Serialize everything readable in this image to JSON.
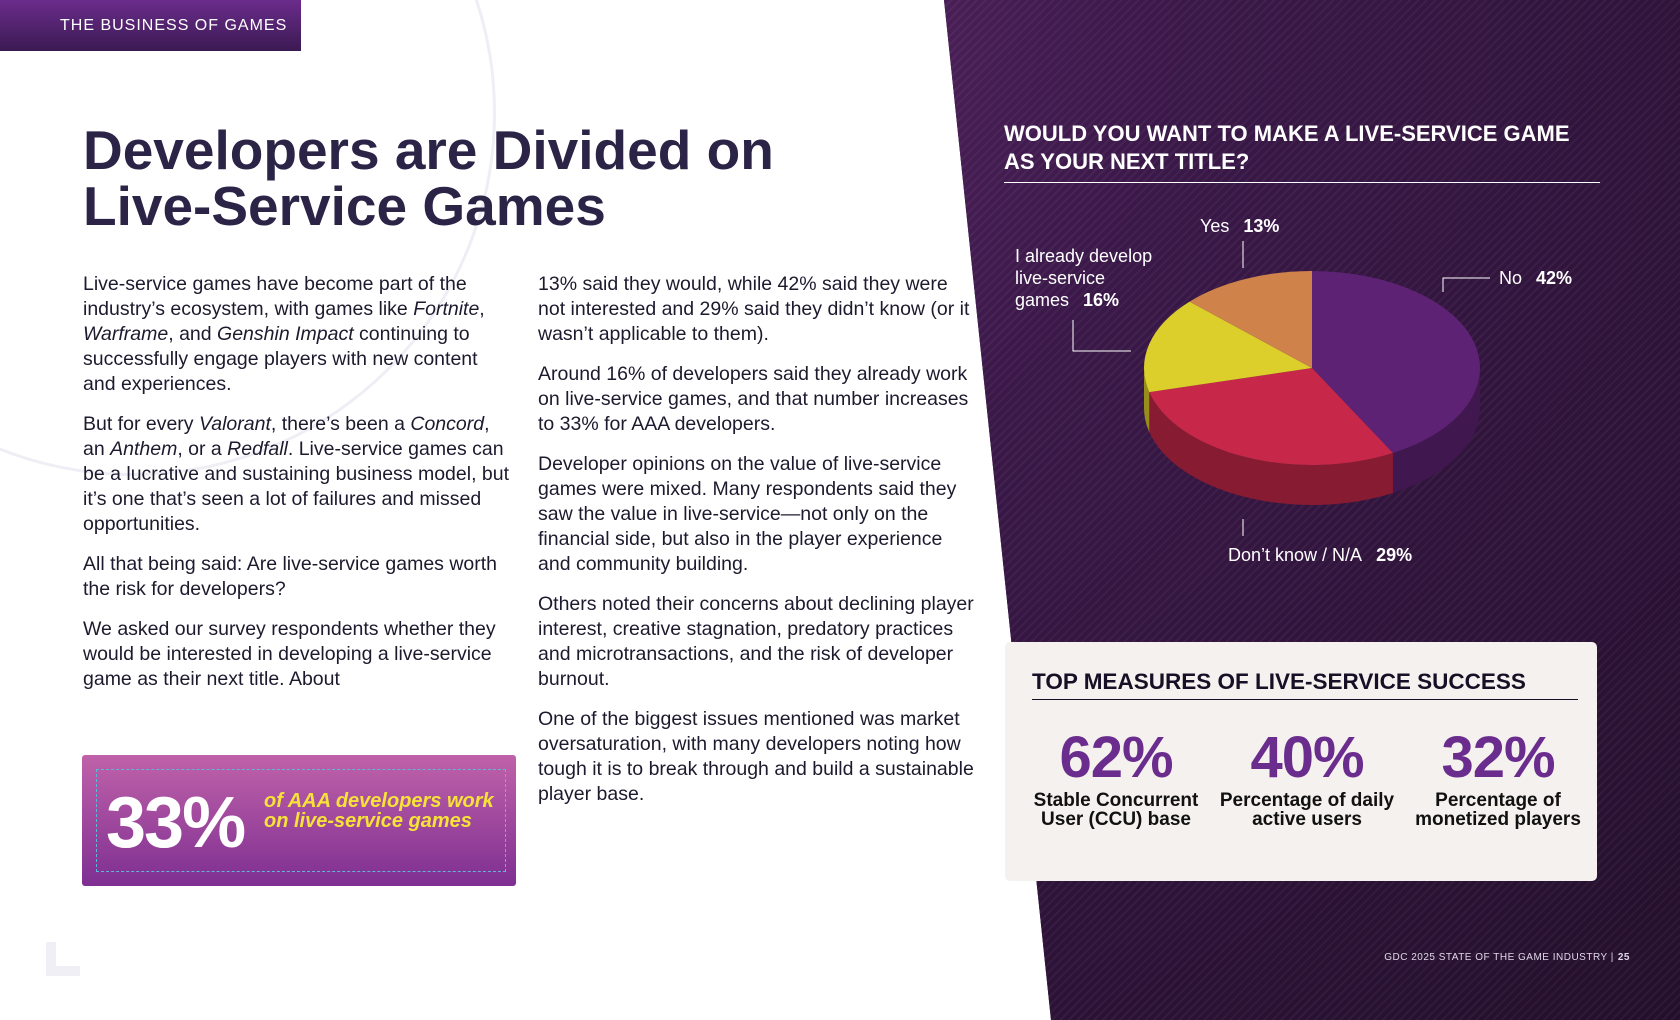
{
  "header": {
    "tag": "THE BUSINESS OF GAMES"
  },
  "title": {
    "line1": "Developers are Divided on",
    "line2": "Live-Service Games"
  },
  "col1": {
    "p1_a": "Live-service games have become part of the industry’s ecosystem, with games like ",
    "p1_g1": "Fortnite",
    "p1_s1": ", ",
    "p1_g2": "Warframe",
    "p1_s2": ", and ",
    "p1_g3": "Genshin Impact",
    "p1_b": " continuing to successfully engage players with new content and experiences.",
    "p2_a": "But for every ",
    "p2_g1": "Valorant",
    "p2_s1": ", there’s been a ",
    "p2_g2": "Concord",
    "p2_s2": ", an ",
    "p2_g3": "Anthem",
    "p2_s3": ", or a ",
    "p2_g4": "Redfall",
    "p2_b": ". Live-service games can be a lucrative and sustaining business model, but it’s one that’s seen a lot of failures and missed opportunities.",
    "p3": "All that being said: Are live-service games worth the risk for developers?",
    "p4": "We asked our survey respondents whether they would be interested in developing a live-service game as their next title. About"
  },
  "col2": {
    "p1": "13% said they would, while 42% said they were not interested and 29% said they didn’t know (or it wasn’t applicable to them).",
    "p2": "Around 16% of developers said they already work on live-service games, and that number increases to 33% for AAA developers.",
    "p3": "Developer opinions on the value of live-service games were mixed. Many respondents said they saw the value in live-service—not only on the financial side, but also in the player experience and community building.",
    "p4": "Others noted their concerns about declining player interest, creative stagnation, predatory practices and microtransactions, and the risk of developer burnout.",
    "p5": "One of the biggest issues mentioned was market oversaturation, with many developers noting how tough it is to break through and build a sustainable player base."
  },
  "callout": {
    "value": "33%",
    "text": "of AAA developers work on live-service games"
  },
  "chart_data": {
    "type": "pie",
    "title": "WOULD YOU WANT TO MAKE A LIVE-SERVICE GAME AS YOUR NEXT TITLE?",
    "slices": [
      {
        "label": "No",
        "value": 42,
        "display": "42%",
        "color": "#5e2274"
      },
      {
        "label": "Don’t know / N/A",
        "value": 29,
        "display": "29%",
        "color": "#c72849"
      },
      {
        "label": "I already develop live-service games",
        "value": 16,
        "display": "16%",
        "color": "#dccf2b"
      },
      {
        "label": "Yes",
        "value": 13,
        "display": "13%",
        "color": "#cf834a"
      }
    ]
  },
  "measures": {
    "title": "TOP MEASURES OF LIVE-SERVICE SUCCESS",
    "items": [
      {
        "value": "62%",
        "label": "Stable Concurrent User (CCU) base"
      },
      {
        "value": "40%",
        "label": "Percentage of daily active users"
      },
      {
        "value": "32%",
        "label": "Percentage of monetized players"
      }
    ]
  },
  "footer": {
    "report": "GDC 2025 STATE OF THE GAME INDUSTRY  |",
    "page": "25"
  }
}
